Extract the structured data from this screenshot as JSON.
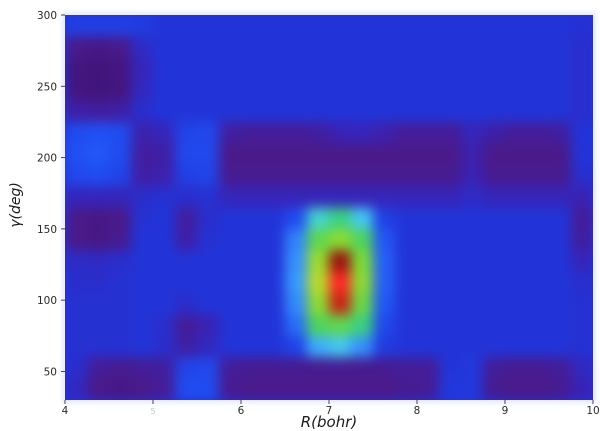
{
  "chart_data": {
    "type": "heatmap",
    "xlabel": "R(bohr)",
    "ylabel": "γ(deg)",
    "xlim": [
      4,
      10
    ],
    "ylim": [
      30,
      300
    ],
    "xticks": [
      4,
      5,
      6,
      7,
      8,
      9,
      10
    ],
    "xtick_labels": [
      "4",
      "5",
      "6",
      "7",
      "8",
      "9",
      "10"
    ],
    "yticks": [
      50,
      100,
      150,
      200,
      250,
      300
    ],
    "ytick_labels": [
      "50",
      "100",
      "150",
      "200",
      "250",
      "300"
    ],
    "grid": false,
    "x": [
      4.125,
      4.375,
      4.625,
      4.875,
      5.125,
      5.375,
      5.625,
      5.875,
      6.125,
      6.375,
      6.625,
      6.875,
      7.125,
      7.375,
      7.625,
      7.875,
      8.125,
      8.375,
      8.625,
      8.875,
      9.125,
      9.375,
      9.625,
      9.875
    ],
    "y": [
      292.5,
      277.5,
      262.5,
      247.5,
      232.5,
      217.5,
      202.5,
      187.5,
      172.5,
      157.5,
      142.5,
      127.5,
      112.5,
      97.5,
      82.5,
      67.5,
      52.5,
      37.5
    ],
    "z": [
      [
        0.25,
        0.25,
        0.25,
        0.24,
        0.22,
        0.22,
        0.22,
        0.22,
        0.22,
        0.22,
        0.22,
        0.22,
        0.22,
        0.22,
        0.22,
        0.22,
        0.22,
        0.22,
        0.22,
        0.22,
        0.22,
        0.22,
        0.22,
        0.21
      ],
      [
        0.1,
        0.09,
        0.1,
        0.19,
        0.22,
        0.22,
        0.22,
        0.22,
        0.22,
        0.22,
        0.22,
        0.22,
        0.22,
        0.22,
        0.22,
        0.22,
        0.22,
        0.22,
        0.22,
        0.22,
        0.22,
        0.22,
        0.22,
        0.2
      ],
      [
        0.08,
        0.07,
        0.08,
        0.17,
        0.22,
        0.22,
        0.22,
        0.22,
        0.22,
        0.22,
        0.22,
        0.22,
        0.22,
        0.22,
        0.22,
        0.22,
        0.22,
        0.22,
        0.22,
        0.22,
        0.22,
        0.22,
        0.22,
        0.2
      ],
      [
        0.08,
        0.07,
        0.08,
        0.18,
        0.22,
        0.22,
        0.22,
        0.22,
        0.22,
        0.22,
        0.22,
        0.22,
        0.22,
        0.22,
        0.22,
        0.22,
        0.22,
        0.22,
        0.22,
        0.22,
        0.22,
        0.22,
        0.22,
        0.2
      ],
      [
        0.14,
        0.13,
        0.14,
        0.2,
        0.22,
        0.22,
        0.22,
        0.22,
        0.22,
        0.22,
        0.22,
        0.22,
        0.22,
        0.22,
        0.22,
        0.22,
        0.22,
        0.22,
        0.22,
        0.22,
        0.22,
        0.22,
        0.22,
        0.2
      ],
      [
        0.28,
        0.29,
        0.28,
        0.15,
        0.17,
        0.26,
        0.27,
        0.13,
        0.12,
        0.12,
        0.12,
        0.13,
        0.16,
        0.17,
        0.15,
        0.12,
        0.12,
        0.12,
        0.17,
        0.14,
        0.12,
        0.12,
        0.13,
        0.22
      ],
      [
        0.29,
        0.3,
        0.28,
        0.13,
        0.14,
        0.27,
        0.27,
        0.1,
        0.1,
        0.1,
        0.1,
        0.1,
        0.1,
        0.1,
        0.1,
        0.1,
        0.1,
        0.1,
        0.15,
        0.1,
        0.1,
        0.1,
        0.1,
        0.22
      ],
      [
        0.27,
        0.28,
        0.26,
        0.14,
        0.15,
        0.25,
        0.26,
        0.11,
        0.11,
        0.11,
        0.11,
        0.11,
        0.11,
        0.11,
        0.11,
        0.11,
        0.11,
        0.11,
        0.16,
        0.11,
        0.11,
        0.11,
        0.11,
        0.2
      ],
      [
        0.17,
        0.17,
        0.17,
        0.2,
        0.21,
        0.2,
        0.21,
        0.17,
        0.17,
        0.17,
        0.17,
        0.17,
        0.17,
        0.17,
        0.17,
        0.17,
        0.17,
        0.17,
        0.19,
        0.17,
        0.17,
        0.17,
        0.17,
        0.16
      ],
      [
        0.1,
        0.09,
        0.1,
        0.21,
        0.22,
        0.13,
        0.2,
        0.22,
        0.22,
        0.22,
        0.28,
        0.5,
        0.55,
        0.46,
        0.25,
        0.22,
        0.22,
        0.22,
        0.22,
        0.22,
        0.22,
        0.22,
        0.22,
        0.12
      ],
      [
        0.1,
        0.09,
        0.11,
        0.22,
        0.22,
        0.14,
        0.21,
        0.22,
        0.22,
        0.22,
        0.36,
        0.63,
        0.7,
        0.6,
        0.3,
        0.22,
        0.22,
        0.22,
        0.22,
        0.22,
        0.22,
        0.22,
        0.22,
        0.13
      ],
      [
        0.19,
        0.19,
        0.2,
        0.22,
        0.22,
        0.22,
        0.22,
        0.22,
        0.22,
        0.22,
        0.38,
        0.72,
        0.91,
        0.68,
        0.31,
        0.22,
        0.22,
        0.22,
        0.22,
        0.22,
        0.22,
        0.22,
        0.22,
        0.17
      ],
      [
        0.2,
        0.2,
        0.21,
        0.22,
        0.22,
        0.22,
        0.22,
        0.22,
        0.22,
        0.22,
        0.39,
        0.76,
        1.0,
        0.7,
        0.31,
        0.22,
        0.22,
        0.22,
        0.22,
        0.22,
        0.22,
        0.22,
        0.22,
        0.2
      ],
      [
        0.21,
        0.21,
        0.21,
        0.22,
        0.22,
        0.2,
        0.22,
        0.22,
        0.22,
        0.22,
        0.37,
        0.7,
        0.88,
        0.65,
        0.3,
        0.22,
        0.22,
        0.22,
        0.22,
        0.22,
        0.22,
        0.22,
        0.22,
        0.21
      ],
      [
        0.21,
        0.21,
        0.21,
        0.22,
        0.2,
        0.12,
        0.16,
        0.22,
        0.22,
        0.22,
        0.33,
        0.6,
        0.63,
        0.55,
        0.27,
        0.22,
        0.22,
        0.22,
        0.22,
        0.22,
        0.22,
        0.22,
        0.22,
        0.21
      ],
      [
        0.21,
        0.21,
        0.21,
        0.22,
        0.2,
        0.14,
        0.18,
        0.22,
        0.22,
        0.22,
        0.26,
        0.42,
        0.46,
        0.38,
        0.24,
        0.22,
        0.22,
        0.22,
        0.22,
        0.22,
        0.22,
        0.22,
        0.22,
        0.21
      ],
      [
        0.2,
        0.12,
        0.11,
        0.12,
        0.13,
        0.26,
        0.27,
        0.12,
        0.11,
        0.11,
        0.11,
        0.11,
        0.11,
        0.11,
        0.11,
        0.12,
        0.12,
        0.22,
        0.23,
        0.12,
        0.11,
        0.11,
        0.12,
        0.18
      ],
      [
        0.18,
        0.1,
        0.09,
        0.1,
        0.12,
        0.28,
        0.28,
        0.11,
        0.1,
        0.1,
        0.1,
        0.1,
        0.1,
        0.1,
        0.1,
        0.11,
        0.12,
        0.23,
        0.23,
        0.11,
        0.1,
        0.1,
        0.11,
        0.16
      ]
    ],
    "colormap": [
      [
        0.0,
        "#2a0858"
      ],
      [
        0.1,
        "#4a1a8a"
      ],
      [
        0.16,
        "#3a22b4"
      ],
      [
        0.22,
        "#2234d8"
      ],
      [
        0.29,
        "#2050f4"
      ],
      [
        0.4,
        "#3aa0ff"
      ],
      [
        0.48,
        "#48d4ee"
      ],
      [
        0.56,
        "#38d070"
      ],
      [
        0.68,
        "#7cdc36"
      ],
      [
        0.78,
        "#c8dc28"
      ],
      [
        0.86,
        "#e8301a"
      ],
      [
        0.92,
        "#8a0c0c"
      ],
      [
        1.0,
        "#ff2626"
      ]
    ]
  }
}
